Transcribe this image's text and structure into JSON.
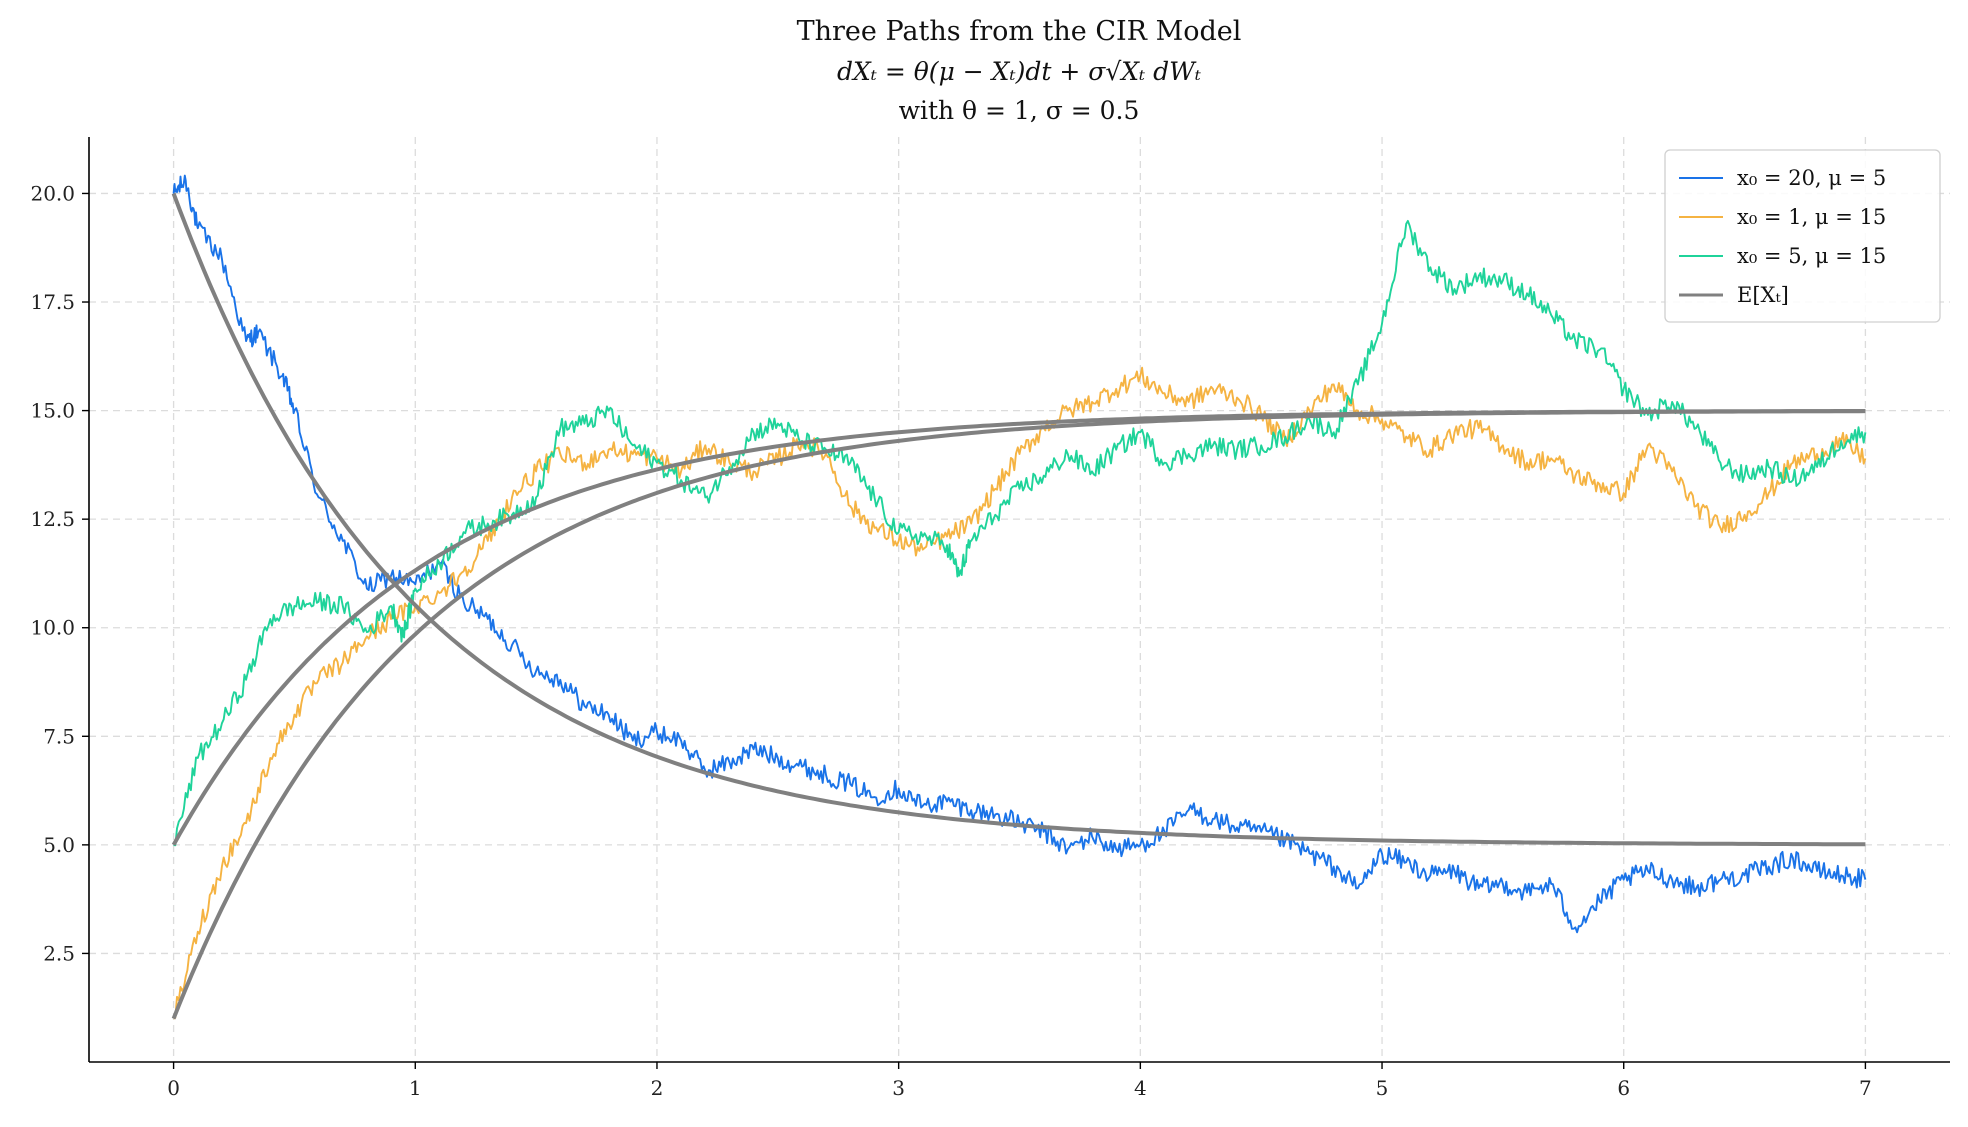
{
  "chart_data": {
    "type": "line",
    "title": "Three Paths from the CIR Model",
    "subtitle_lines": [
      "dXₜ = θ(μ − Xₜ)dt + σ√Xₜ dWₜ",
      "with θ = 1, σ = 0.5"
    ],
    "xlabel": "",
    "ylabel": "",
    "xlim": [
      -0.35,
      7.35
    ],
    "ylim": [
      0.0,
      21.3
    ],
    "x_ticks": [
      0,
      1,
      2,
      3,
      4,
      5,
      6,
      7
    ],
    "x_tick_labels": [
      "0",
      "1",
      "2",
      "3",
      "4",
      "5",
      "6",
      "7"
    ],
    "y_ticks": [
      2.5,
      5.0,
      7.5,
      10.0,
      12.5,
      15.0,
      17.5,
      20.0
    ],
    "y_tick_labels": [
      "2.5",
      "5.0",
      "7.5",
      "10.0",
      "12.5",
      "15.0",
      "17.5",
      "20.0"
    ],
    "grid": true,
    "legend_position": "top-right",
    "theta": 1,
    "sigma": 0.5,
    "series": [
      {
        "name": "x₀ = 20, μ = 5",
        "color": "#1a73e8",
        "points": [
          [
            0,
            20
          ],
          [
            0.05,
            20.3
          ],
          [
            0.1,
            19.2
          ],
          [
            0.2,
            18.5
          ],
          [
            0.3,
            16.6
          ],
          [
            0.35,
            16.8
          ],
          [
            0.45,
            15.8
          ],
          [
            0.5,
            15.0
          ],
          [
            0.6,
            13.0
          ],
          [
            0.7,
            12.0
          ],
          [
            0.8,
            10.9
          ],
          [
            0.9,
            11.2
          ],
          [
            1.0,
            11.0
          ],
          [
            1.1,
            11.5
          ],
          [
            1.2,
            10.6
          ],
          [
            1.3,
            10.2
          ],
          [
            1.4,
            9.6
          ],
          [
            1.5,
            9.0
          ],
          [
            1.6,
            8.8
          ],
          [
            1.7,
            8.2
          ],
          [
            1.8,
            8.0
          ],
          [
            1.9,
            7.4
          ],
          [
            2.0,
            7.6
          ],
          [
            2.1,
            7.4
          ],
          [
            2.2,
            6.7
          ],
          [
            2.3,
            6.9
          ],
          [
            2.4,
            7.2
          ],
          [
            2.5,
            7.0
          ],
          [
            2.6,
            6.8
          ],
          [
            2.7,
            6.6
          ],
          [
            2.8,
            6.4
          ],
          [
            2.9,
            6.1
          ],
          [
            3.0,
            6.3
          ],
          [
            3.1,
            5.9
          ],
          [
            3.2,
            6.0
          ],
          [
            3.3,
            5.8
          ],
          [
            3.4,
            5.7
          ],
          [
            3.5,
            5.5
          ],
          [
            3.6,
            5.3
          ],
          [
            3.7,
            4.9
          ],
          [
            3.8,
            5.2
          ],
          [
            3.9,
            4.9
          ],
          [
            4.0,
            5.0
          ],
          [
            4.1,
            5.3
          ],
          [
            4.2,
            5.8
          ],
          [
            4.3,
            5.6
          ],
          [
            4.4,
            5.4
          ],
          [
            4.5,
            5.3
          ],
          [
            4.6,
            5.1
          ],
          [
            4.7,
            4.8
          ],
          [
            4.8,
            4.5
          ],
          [
            4.9,
            4.0
          ],
          [
            5.0,
            4.8
          ],
          [
            5.1,
            4.6
          ],
          [
            5.2,
            4.3
          ],
          [
            5.3,
            4.4
          ],
          [
            5.4,
            4.0
          ],
          [
            5.5,
            4.1
          ],
          [
            5.6,
            3.9
          ],
          [
            5.7,
            4.1
          ],
          [
            5.8,
            3.1
          ],
          [
            5.9,
            3.7
          ],
          [
            6.0,
            4.2
          ],
          [
            6.1,
            4.4
          ],
          [
            6.2,
            4.2
          ],
          [
            6.3,
            4.0
          ],
          [
            6.4,
            4.2
          ],
          [
            6.5,
            4.3
          ],
          [
            6.6,
            4.5
          ],
          [
            6.7,
            4.7
          ],
          [
            6.8,
            4.4
          ],
          [
            6.9,
            4.3
          ],
          [
            7.0,
            4.2
          ]
        ]
      },
      {
        "name": "x₀ = 1, μ = 15",
        "color": "#f5b342",
        "points": [
          [
            0,
            1
          ],
          [
            0.1,
            3.0
          ],
          [
            0.2,
            4.5
          ],
          [
            0.3,
            5.5
          ],
          [
            0.4,
            7.0
          ],
          [
            0.5,
            8.0
          ],
          [
            0.6,
            8.8
          ],
          [
            0.7,
            9.2
          ],
          [
            0.8,
            9.8
          ],
          [
            0.9,
            10.2
          ],
          [
            1.0,
            10.5
          ],
          [
            1.1,
            10.8
          ],
          [
            1.2,
            11.3
          ],
          [
            1.3,
            12.0
          ],
          [
            1.4,
            13.0
          ],
          [
            1.5,
            13.6
          ],
          [
            1.6,
            14.0
          ],
          [
            1.7,
            13.8
          ],
          [
            1.8,
            14.1
          ],
          [
            1.9,
            14.0
          ],
          [
            2.0,
            13.9
          ],
          [
            2.1,
            13.6
          ],
          [
            2.2,
            14.2
          ],
          [
            2.3,
            13.8
          ],
          [
            2.4,
            13.6
          ],
          [
            2.5,
            13.9
          ],
          [
            2.6,
            14.3
          ],
          [
            2.7,
            14.0
          ],
          [
            2.8,
            12.8
          ],
          [
            2.9,
            12.3
          ],
          [
            3.0,
            12.0
          ],
          [
            3.1,
            11.8
          ],
          [
            3.2,
            12.1
          ],
          [
            3.3,
            12.4
          ],
          [
            3.4,
            13.2
          ],
          [
            3.5,
            14.0
          ],
          [
            3.6,
            14.6
          ],
          [
            3.7,
            15.0
          ],
          [
            3.8,
            15.2
          ],
          [
            3.9,
            15.5
          ],
          [
            4.0,
            15.8
          ],
          [
            4.1,
            15.4
          ],
          [
            4.2,
            15.2
          ],
          [
            4.3,
            15.5
          ],
          [
            4.4,
            15.3
          ],
          [
            4.5,
            14.9
          ],
          [
            4.6,
            14.3
          ],
          [
            4.7,
            15.0
          ],
          [
            4.8,
            15.6
          ],
          [
            4.9,
            15.0
          ],
          [
            5.0,
            14.8
          ],
          [
            5.1,
            14.4
          ],
          [
            5.2,
            14.1
          ],
          [
            5.3,
            14.5
          ],
          [
            5.4,
            14.6
          ],
          [
            5.5,
            14.2
          ],
          [
            5.6,
            13.8
          ],
          [
            5.7,
            13.9
          ],
          [
            5.8,
            13.5
          ],
          [
            5.9,
            13.3
          ],
          [
            6.0,
            13.1
          ],
          [
            6.1,
            14.2
          ],
          [
            6.2,
            13.6
          ],
          [
            6.3,
            12.8
          ],
          [
            6.4,
            12.3
          ],
          [
            6.5,
            12.6
          ],
          [
            6.6,
            13.1
          ],
          [
            6.7,
            13.8
          ],
          [
            6.8,
            14.0
          ],
          [
            6.9,
            14.3
          ],
          [
            7.0,
            13.9
          ]
        ]
      },
      {
        "name": "x₀ = 5, μ = 15",
        "color": "#1fd39a",
        "points": [
          [
            0,
            5
          ],
          [
            0.1,
            7.0
          ],
          [
            0.2,
            7.8
          ],
          [
            0.3,
            8.8
          ],
          [
            0.4,
            10.2
          ],
          [
            0.5,
            10.5
          ],
          [
            0.6,
            10.6
          ],
          [
            0.7,
            10.5
          ],
          [
            0.8,
            9.9
          ],
          [
            0.9,
            10.5
          ],
          [
            0.95,
            9.8
          ],
          [
            1.0,
            10.9
          ],
          [
            1.1,
            11.5
          ],
          [
            1.2,
            12.2
          ],
          [
            1.3,
            12.4
          ],
          [
            1.4,
            12.6
          ],
          [
            1.5,
            13.0
          ],
          [
            1.6,
            14.6
          ],
          [
            1.7,
            14.7
          ],
          [
            1.8,
            15.0
          ],
          [
            1.9,
            14.2
          ],
          [
            2.0,
            13.8
          ],
          [
            2.1,
            13.4
          ],
          [
            2.2,
            13.0
          ],
          [
            2.3,
            13.7
          ],
          [
            2.4,
            14.5
          ],
          [
            2.5,
            14.7
          ],
          [
            2.6,
            14.3
          ],
          [
            2.7,
            14.1
          ],
          [
            2.8,
            13.8
          ],
          [
            2.9,
            13.0
          ],
          [
            3.0,
            12.2
          ],
          [
            3.1,
            12.1
          ],
          [
            3.2,
            11.9
          ],
          [
            3.25,
            11.2
          ],
          [
            3.3,
            12.0
          ],
          [
            3.4,
            12.6
          ],
          [
            3.5,
            13.2
          ],
          [
            3.6,
            13.5
          ],
          [
            3.7,
            14.0
          ],
          [
            3.8,
            13.6
          ],
          [
            3.9,
            14.1
          ],
          [
            4.0,
            14.5
          ],
          [
            4.1,
            13.8
          ],
          [
            4.2,
            14.0
          ],
          [
            4.3,
            14.2
          ],
          [
            4.4,
            14.1
          ],
          [
            4.5,
            14.2
          ],
          [
            4.6,
            14.4
          ],
          [
            4.7,
            14.8
          ],
          [
            4.8,
            14.5
          ],
          [
            4.9,
            15.6
          ],
          [
            5.0,
            17.0
          ],
          [
            5.1,
            19.3
          ],
          [
            5.2,
            18.3
          ],
          [
            5.3,
            17.8
          ],
          [
            5.4,
            18.1
          ],
          [
            5.5,
            18.0
          ],
          [
            5.6,
            17.7
          ],
          [
            5.7,
            17.2
          ],
          [
            5.8,
            16.6
          ],
          [
            5.9,
            16.4
          ],
          [
            6.0,
            15.5
          ],
          [
            6.1,
            14.9
          ],
          [
            6.2,
            15.2
          ],
          [
            6.3,
            14.6
          ],
          [
            6.4,
            13.8
          ],
          [
            6.5,
            13.5
          ],
          [
            6.6,
            13.7
          ],
          [
            6.7,
            13.4
          ],
          [
            6.8,
            13.7
          ],
          [
            6.9,
            14.3
          ],
          [
            7.0,
            14.5
          ]
        ]
      },
      {
        "name": "E[Xₜ]",
        "color": "#808080",
        "expectations": [
          {
            "x0": 20,
            "mu": 5
          },
          {
            "x0": 1,
            "mu": 15
          },
          {
            "x0": 5,
            "mu": 15
          }
        ]
      }
    ]
  }
}
